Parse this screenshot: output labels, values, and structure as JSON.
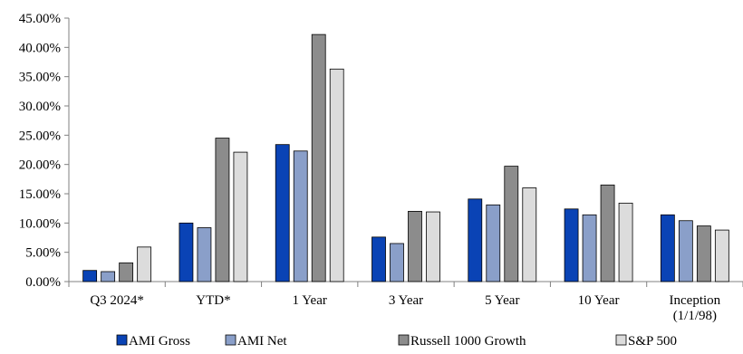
{
  "chart_data": {
    "type": "bar",
    "categories": [
      [
        "Q3 2024*"
      ],
      [
        "YTD*"
      ],
      [
        "1 Year"
      ],
      [
        "3 Year"
      ],
      [
        "5 Year"
      ],
      [
        "10 Year"
      ],
      [
        "Inception",
        "(1/1/98)"
      ]
    ],
    "series": [
      {
        "name": "AMI Gross",
        "color": "#0a43b5",
        "values": [
          1.9,
          10.0,
          23.4,
          7.6,
          14.1,
          12.4,
          11.4
        ]
      },
      {
        "name": "AMI Net",
        "color": "#8a9fc9",
        "values": [
          1.7,
          9.2,
          22.3,
          6.5,
          13.1,
          11.4,
          10.4
        ]
      },
      {
        "name": "Russell 1000 Growth",
        "color": "#8c8c8c",
        "values": [
          3.2,
          24.5,
          42.2,
          12.0,
          19.7,
          16.5,
          9.5
        ]
      },
      {
        "name": "S&P 500",
        "color": "#dcdcdc",
        "values": [
          5.9,
          22.1,
          36.3,
          11.9,
          16.0,
          13.4,
          8.8
        ]
      }
    ],
    "ylim": [
      0,
      45
    ],
    "yticks": [
      "0.00%",
      "5.00%",
      "10.00%",
      "15.00%",
      "20.00%",
      "25.00%",
      "30.00%",
      "35.00%",
      "40.00%",
      "45.00%"
    ],
    "grid": false,
    "legend_position": "bottom"
  }
}
